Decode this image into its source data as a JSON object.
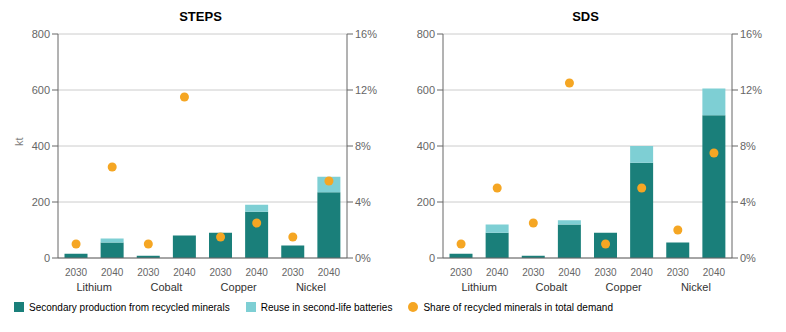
{
  "chart_data": [
    {
      "type": "bar",
      "title": "STEPS",
      "y_label": "kt",
      "categories": [
        "2030",
        "2040",
        "2030",
        "2040",
        "2030",
        "2040",
        "2030",
        "2040"
      ],
      "groups": [
        "Lithium",
        "Cobalt",
        "Copper",
        "Nickel"
      ],
      "stacked": true,
      "grid": true,
      "legend": "lower left",
      "ylim": [
        0,
        800
      ],
      "yticks": [
        0,
        200,
        400,
        600,
        800
      ],
      "y2lim": [
        0,
        0.16
      ],
      "y2ticks": [
        {
          "value": 0,
          "label": "0%"
        },
        {
          "value": 0.04,
          "label": "4%"
        },
        {
          "value": 0.08,
          "label": "8%"
        },
        {
          "value": 0.12,
          "label": "12%"
        },
        {
          "value": 0.16,
          "label": "16%"
        }
      ],
      "series": [
        {
          "name": "Secondary production from recycled minerals",
          "type": "bar",
          "color": "#1a7f7a",
          "values": [
            15,
            55,
            8,
            80,
            90,
            165,
            45,
            235
          ]
        },
        {
          "name": "Reuse in second-life batteries",
          "type": "bar",
          "color": "#7ecfd4",
          "values": [
            0,
            15,
            0,
            0,
            0,
            25,
            0,
            55
          ]
        },
        {
          "name": "Share of recycled minerals in total demand",
          "type": "scatter",
          "axis": "y2",
          "marker": "circle",
          "color": "#f5a623",
          "values": [
            0.01,
            0.065,
            0.01,
            0.115,
            0.015,
            0.025,
            0.015,
            0.055
          ]
        }
      ]
    },
    {
      "type": "bar",
      "title": "SDS",
      "categories": [
        "2030",
        "2040",
        "2030",
        "2040",
        "2030",
        "2040",
        "2030",
        "2040"
      ],
      "groups": [
        "Lithium",
        "Cobalt",
        "Copper",
        "Nickel"
      ],
      "stacked": true,
      "grid": true,
      "ylim": [
        0,
        800
      ],
      "yticks": [
        0,
        200,
        400,
        600,
        800
      ],
      "y2lim": [
        0,
        0.16
      ],
      "y2ticks": [
        {
          "value": 0,
          "label": "0%"
        },
        {
          "value": 0.04,
          "label": "4%"
        },
        {
          "value": 0.08,
          "label": "8%"
        },
        {
          "value": 0.12,
          "label": "12%"
        },
        {
          "value": 0.16,
          "label": "16%"
        }
      ],
      "series": [
        {
          "name": "Secondary production from recycled minerals",
          "type": "bar",
          "color": "#1a7f7a",
          "values": [
            15,
            90,
            8,
            120,
            90,
            340,
            55,
            510
          ]
        },
        {
          "name": "Reuse in second-life batteries",
          "type": "bar",
          "color": "#7ecfd4",
          "values": [
            0,
            30,
            0,
            15,
            0,
            60,
            0,
            95
          ]
        },
        {
          "name": "Share of recycled minerals in total demand",
          "type": "scatter",
          "axis": "y2",
          "marker": "circle",
          "color": "#f5a623",
          "values": [
            0.01,
            0.05,
            0.025,
            0.125,
            0.01,
            0.05,
            0.02,
            0.075
          ]
        }
      ]
    }
  ]
}
